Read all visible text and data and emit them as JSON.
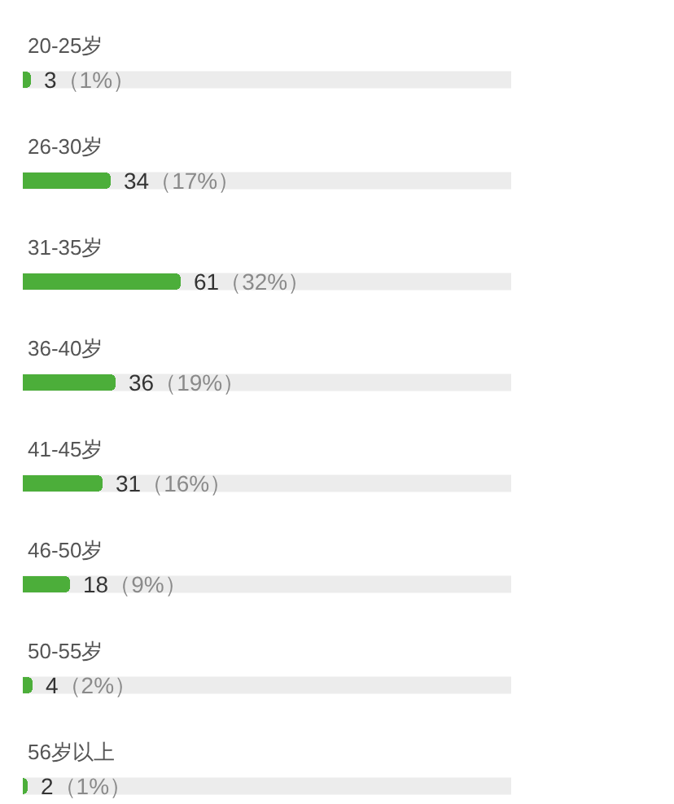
{
  "chart_data": {
    "type": "bar",
    "orientation": "horizontal",
    "categories": [
      "20-25岁",
      "26-30岁",
      "31-35岁",
      "36-40岁",
      "41-45岁",
      "46-50岁",
      "50-55岁",
      "56岁以上"
    ],
    "values": [
      3,
      34,
      61,
      36,
      31,
      18,
      4,
      2
    ],
    "value_labels": [
      "3（1%）",
      "34（17%）",
      "61（32%）",
      "36（19%）",
      "31（16%）",
      "18（9%）",
      "4（2%）",
      "2（1%）"
    ],
    "color": "#4cae3a",
    "tick_labels": "y"
  }
}
